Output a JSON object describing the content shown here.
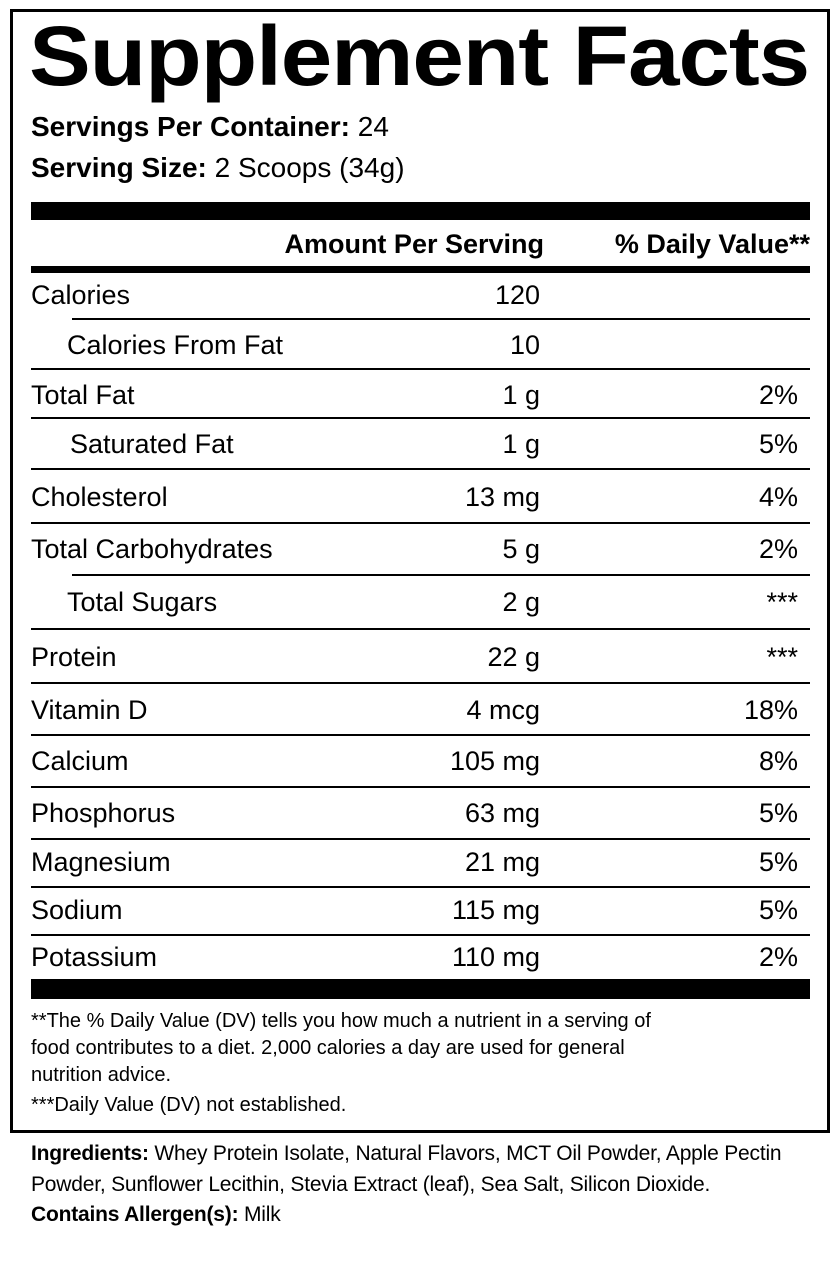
{
  "title": "Supplement Facts",
  "servings_per_container": {
    "label": "Servings Per Container:",
    "value": "24"
  },
  "serving_size": {
    "label": "Serving Size:",
    "value": "2 Scoops (34g)"
  },
  "header": {
    "amount": "Amount Per Serving",
    "daily_value": "% Daily Value**"
  },
  "rows": [
    {
      "name": "Calories",
      "amount": "120",
      "dv": "",
      "indent": false
    },
    {
      "name": "Calories From Fat",
      "amount": "10",
      "dv": "",
      "indent": true
    },
    {
      "name": "Total Fat",
      "amount": "1 g",
      "dv": "2%",
      "indent": false
    },
    {
      "name": "Saturated Fat",
      "amount": "1 g",
      "dv": "5%",
      "indent": true
    },
    {
      "name": "Cholesterol",
      "amount": "13 mg",
      "dv": "4%",
      "indent": false
    },
    {
      "name": "Total Carbohydrates",
      "amount": "5 g",
      "dv": "2%",
      "indent": false
    },
    {
      "name": "Total Sugars",
      "amount": "2 g",
      "dv": "***",
      "indent": true
    },
    {
      "name": "Protein",
      "amount": "22 g",
      "dv": "***",
      "indent": false
    },
    {
      "name": "Vitamin D",
      "amount": "4 mcg",
      "dv": "18%",
      "indent": false
    },
    {
      "name": "Calcium",
      "amount": "105 mg",
      "dv": "8%",
      "indent": false
    },
    {
      "name": "Phosphorus",
      "amount": "63 mg",
      "dv": "5%",
      "indent": false
    },
    {
      "name": "Magnesium",
      "amount": "21 mg",
      "dv": "5%",
      "indent": false
    },
    {
      "name": "Sodium",
      "amount": "115 mg",
      "dv": "5%",
      "indent": false
    },
    {
      "name": "Potassium",
      "amount": "110 mg",
      "dv": "2%",
      "indent": false
    }
  ],
  "footnotes": [
    "**The % Daily Value (DV) tells you how much a nutrient in a serving of",
    "food contributes to a diet. 2,000 calories a day are used for general",
    "nutrition advice.",
    "***Daily Value (DV) not established."
  ],
  "ingredients": {
    "label": "Ingredients:",
    "text": "Whey Protein Isolate, Natural Flavors, MCT Oil Powder, Apple Pectin Powder, Sunflower Lecithin, Stevia Extract (leaf), Sea Salt, Silicon Dioxide."
  },
  "allergens": {
    "label": "Contains Allergen(s):",
    "text": "Milk"
  }
}
